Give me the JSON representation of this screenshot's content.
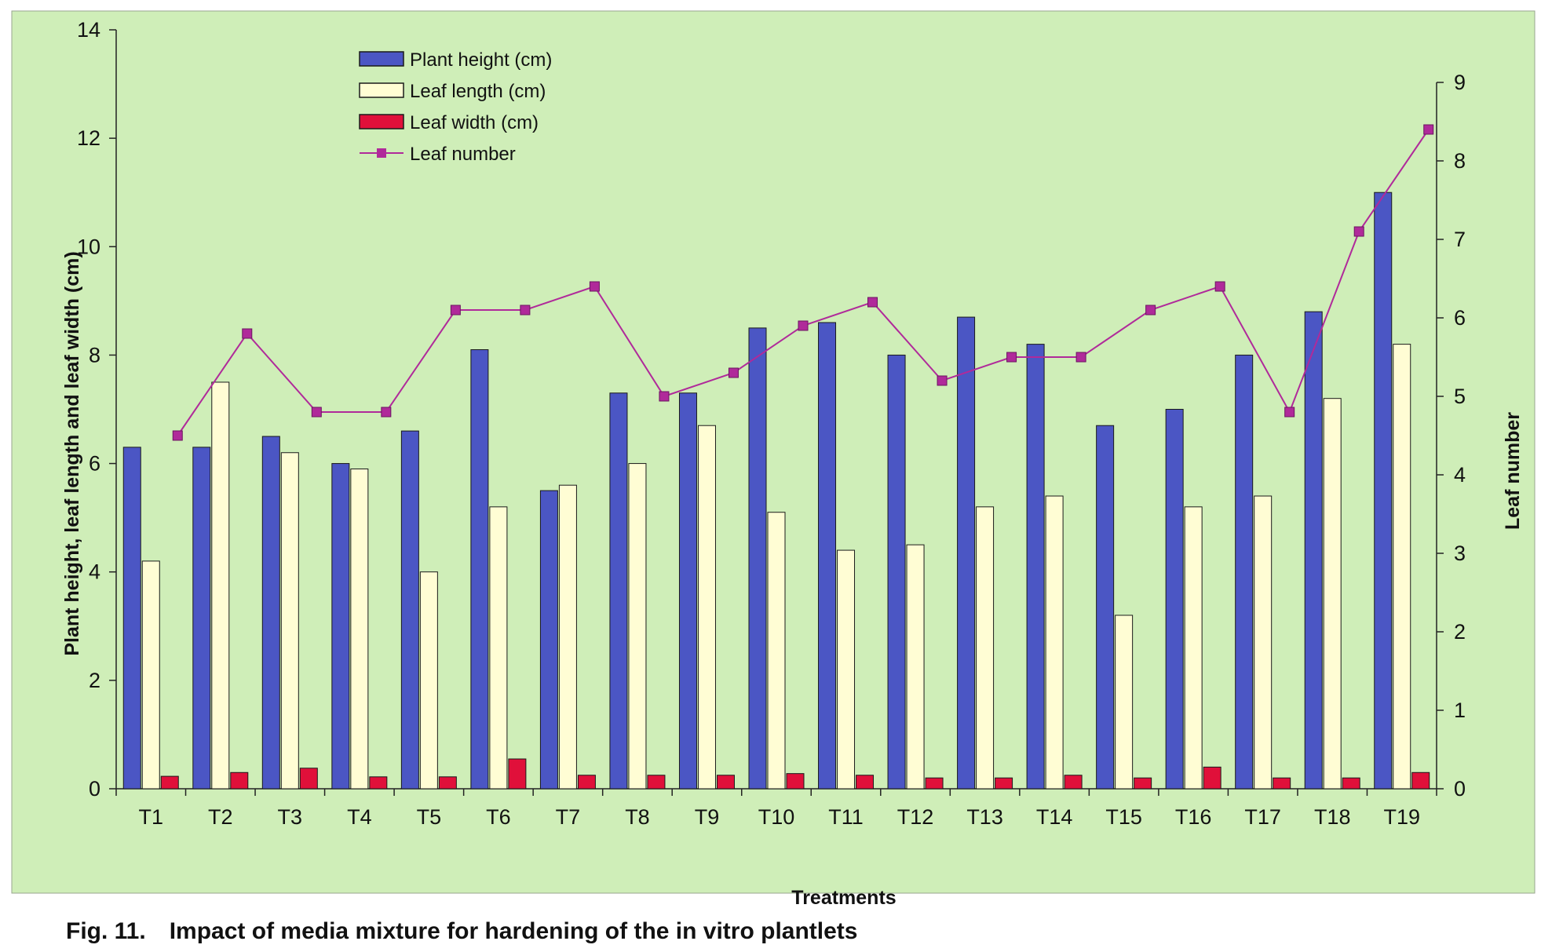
{
  "caption": {
    "figure_number": "Fig. 11.",
    "text": "Impact of  media mixture for hardening of the in vitro plantlets"
  },
  "colors": {
    "background": "#cfeeb8",
    "plant_height": "#4b56c4",
    "leaf_length": "#fffdd4",
    "leaf_width": "#e0103a",
    "leaf_number": "#b02a9a"
  },
  "chart_data": {
    "type": "bar",
    "xlabel": "Treatments",
    "ylabel": "Plant height, leaf length and leaf width (cm)",
    "y2label": "Leaf number",
    "ylim": [
      0,
      14
    ],
    "y2lim": [
      0,
      9
    ],
    "yticks": [
      0,
      2,
      4,
      6,
      8,
      10,
      12,
      14
    ],
    "y2ticks": [
      0,
      1,
      2,
      3,
      4,
      5,
      6,
      7,
      8,
      9
    ],
    "grid": false,
    "legend_position": "top-left",
    "categories": [
      "T1",
      "T2",
      "T3",
      "T4",
      "T5",
      "T6",
      "T7",
      "T8",
      "T9",
      "T10",
      "T11",
      "T12",
      "T13",
      "T14",
      "T15",
      "T16",
      "T17",
      "T18",
      "T19"
    ],
    "series": [
      {
        "name": "Plant height (cm)",
        "type": "bar",
        "axis": "left",
        "values": [
          6.3,
          6.3,
          6.5,
          6.0,
          6.6,
          8.1,
          5.5,
          7.3,
          7.3,
          8.5,
          8.6,
          8.0,
          8.7,
          8.2,
          6.7,
          7.0,
          8.0,
          8.8,
          11.0
        ]
      },
      {
        "name": "Leaf length (cm)",
        "type": "bar",
        "axis": "left",
        "values": [
          4.2,
          7.5,
          6.2,
          5.9,
          4.0,
          5.2,
          5.6,
          6.0,
          6.7,
          5.1,
          4.4,
          4.5,
          5.2,
          5.4,
          3.2,
          5.2,
          5.4,
          7.2,
          8.2
        ]
      },
      {
        "name": "Leaf width (cm)",
        "type": "bar",
        "axis": "left",
        "values": [
          0.23,
          0.3,
          0.38,
          0.22,
          0.22,
          0.55,
          0.25,
          0.25,
          0.25,
          0.28,
          0.25,
          0.2,
          0.2,
          0.25,
          0.2,
          0.4,
          0.2,
          0.2,
          0.3
        ]
      },
      {
        "name": "Leaf number",
        "type": "line",
        "axis": "right",
        "values": [
          4.5,
          5.8,
          4.8,
          4.8,
          6.1,
          6.1,
          6.4,
          5.0,
          5.3,
          5.9,
          6.2,
          5.2,
          5.5,
          5.5,
          6.1,
          6.4,
          4.8,
          7.1,
          8.4
        ]
      }
    ]
  }
}
